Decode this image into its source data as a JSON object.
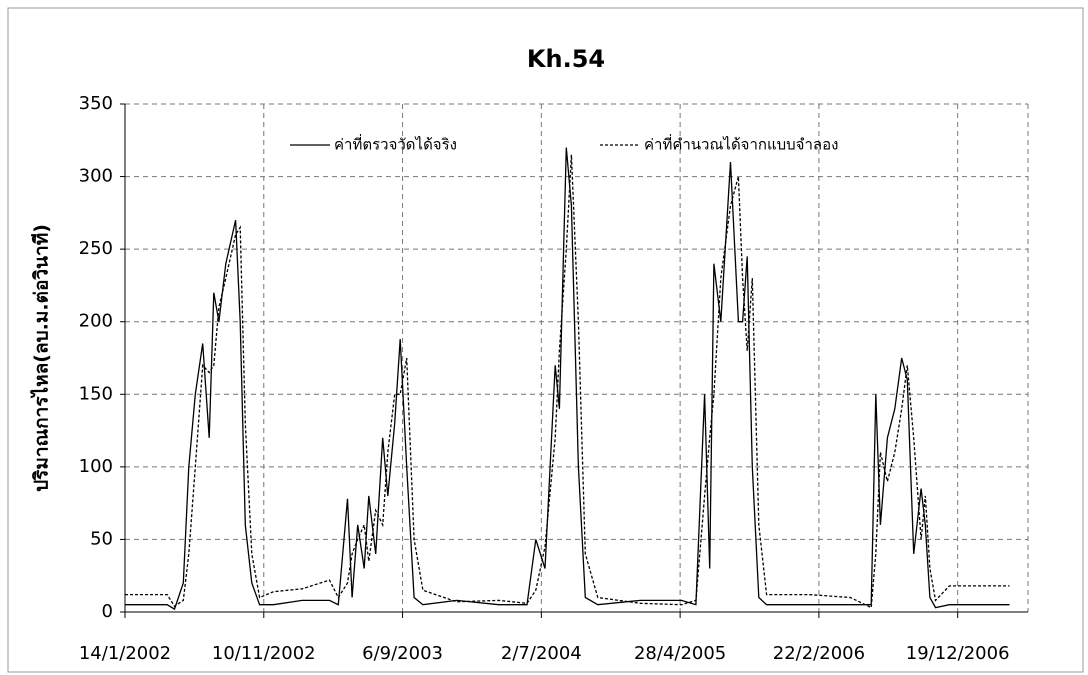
{
  "chart_data": {
    "type": "line",
    "title": "Kh.54",
    "y_label": "ปริมาณการไหล(ลบ.ม.ต่อวินาที)",
    "x": [
      "14/1/2002",
      "1/3/2002",
      "15/4/2002",
      "1/5/2002",
      "20/5/2002",
      "1/6/2002",
      "15/6/2002",
      "1/7/2002",
      "15/7/2002",
      "25/7/2002",
      "5/8/2002",
      "20/8/2002",
      "10/9/2002",
      "20/9/2002",
      "1/10/2002",
      "15/10/2002",
      "1/11/2002",
      "1/12/2002",
      "1/2/2003",
      "1/4/2003",
      "20/4/2003",
      "10/5/2003",
      "20/5/2003",
      "1/6/2003",
      "15/6/2003",
      "25/6/2003",
      "10/7/2003",
      "25/7/2003",
      "5/8/2003",
      "20/8/2003",
      "1/9/2003",
      "15/9/2003",
      "1/10/2003",
      "20/10/2003",
      "1/1/2004",
      "1/4/2004",
      "1/6/2004",
      "20/6/2004",
      "10/7/2004",
      "1/8/2004",
      "10/8/2004",
      "25/8/2004",
      "5/9/2004",
      "20/9/2004",
      "5/10/2004",
      "1/11/2004",
      "1/2/2005",
      "1/5/2005",
      "1/6/2005",
      "20/6/2005",
      "1/7/2005",
      "10/7/2005",
      "25/7/2005",
      "15/8/2005",
      "1/9/2005",
      "10/9/2005",
      "20/9/2005",
      "1/10/2005",
      "15/10/2005",
      "1/11/2005",
      "1/2/2006",
      "1/5/2006",
      "15/6/2006",
      "25/6/2006",
      "5/7/2006",
      "20/7/2006",
      "5/8/2006",
      "20/8/2006",
      "1/9/2006",
      "15/9/2006",
      "1/10/2006",
      "10/10/2006",
      "20/10/2006",
      "1/11/2006",
      "1/12/2006",
      "1/2/2007",
      "10/4/2007"
    ],
    "series": [
      {
        "name": "ค่าที่ตรวจวัดได้จริง",
        "color": "#000000",
        "line_style": "solid",
        "values": [
          5,
          5,
          5,
          2,
          20,
          100,
          150,
          185,
          120,
          220,
          200,
          240,
          270,
          200,
          60,
          20,
          5,
          5,
          8,
          8,
          5,
          78,
          10,
          60,
          30,
          80,
          40,
          120,
          80,
          130,
          188,
          100,
          10,
          5,
          8,
          5,
          5,
          50,
          30,
          170,
          140,
          320,
          280,
          100,
          10,
          5,
          8,
          8,
          5,
          150,
          30,
          240,
          200,
          310,
          200,
          200,
          245,
          100,
          10,
          5,
          5,
          5,
          5,
          150,
          60,
          120,
          140,
          175,
          160,
          40,
          85,
          60,
          10,
          3,
          5,
          5,
          5
        ]
      },
      {
        "name": "ค่าที่คำนวณได้จากแบบจำลอง",
        "color": "#000000",
        "line_style": "dashed",
        "values": [
          12,
          12,
          12,
          4,
          8,
          40,
          100,
          170,
          165,
          170,
          210,
          230,
          260,
          265,
          130,
          40,
          10,
          14,
          16,
          22,
          10,
          20,
          40,
          50,
          60,
          35,
          70,
          60,
          110,
          150,
          150,
          175,
          50,
          15,
          7,
          8,
          6,
          15,
          45,
          120,
          180,
          250,
          315,
          200,
          40,
          10,
          6,
          5,
          8,
          80,
          120,
          150,
          230,
          280,
          300,
          230,
          180,
          230,
          60,
          12,
          12,
          10,
          3,
          40,
          110,
          90,
          110,
          140,
          170,
          120,
          50,
          80,
          30,
          8,
          18,
          18,
          18
        ]
      }
    ],
    "xlim": [
      "14/1/2002",
      "20/5/2007"
    ],
    "xticks": [
      "14/1/2002",
      "10/11/2002",
      "6/9/2003",
      "2/7/2004",
      "28/4/2005",
      "22/2/2006",
      "19/12/2006"
    ],
    "ylim": [
      0,
      350
    ],
    "yticks": [
      0,
      50,
      100,
      150,
      200,
      250,
      300,
      350
    ],
    "grid": true,
    "legend": "top"
  }
}
